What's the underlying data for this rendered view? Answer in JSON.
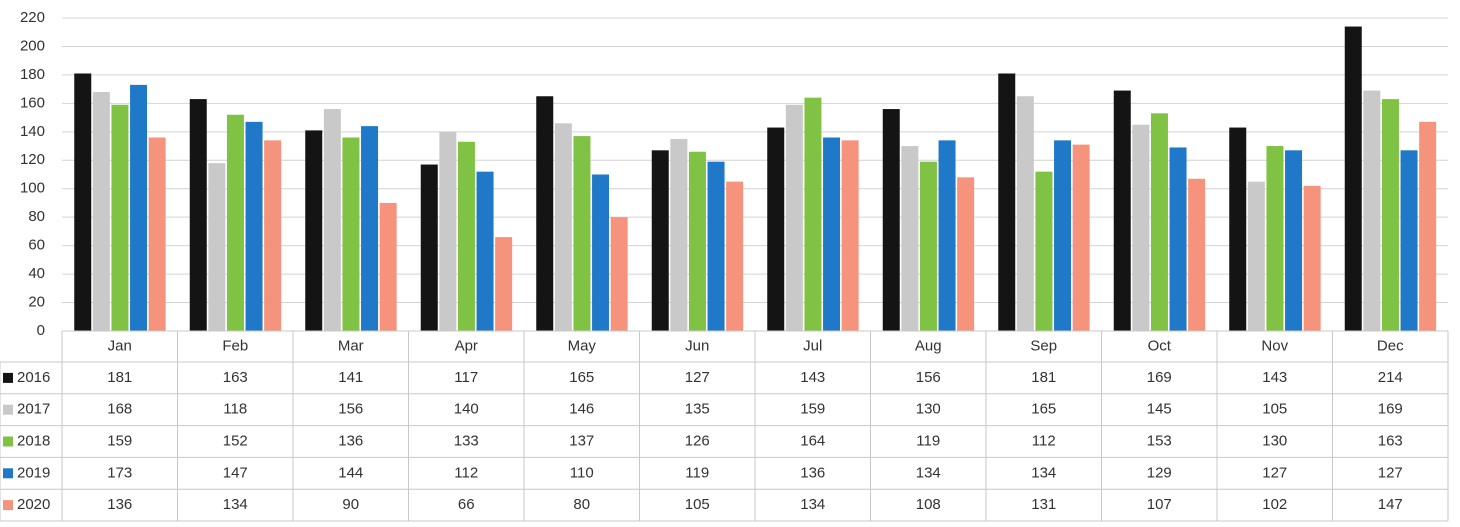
{
  "chart_data": {
    "type": "bar",
    "categories": [
      "Jan",
      "Feb",
      "Mar",
      "Apr",
      "May",
      "Jun",
      "Jul",
      "Aug",
      "Sep",
      "Oct",
      "Nov",
      "Dec"
    ],
    "series": [
      {
        "name": "2016",
        "color": "#141414",
        "values": [
          181,
          163,
          141,
          117,
          165,
          127,
          143,
          156,
          181,
          169,
          143,
          214
        ]
      },
      {
        "name": "2017",
        "color": "#c9c9c9",
        "values": [
          168,
          118,
          156,
          140,
          146,
          135,
          159,
          130,
          165,
          145,
          105,
          169
        ]
      },
      {
        "name": "2018",
        "color": "#7fc244",
        "values": [
          159,
          152,
          136,
          133,
          137,
          126,
          164,
          119,
          112,
          153,
          130,
          163
        ]
      },
      {
        "name": "2019",
        "color": "#1f78c8",
        "values": [
          173,
          147,
          144,
          112,
          110,
          119,
          136,
          134,
          134,
          129,
          127,
          127
        ]
      },
      {
        "name": "2020",
        "color": "#f5937c",
        "values": [
          136,
          134,
          90,
          66,
          80,
          105,
          134,
          108,
          131,
          107,
          102,
          147
        ]
      }
    ],
    "ylim": [
      0,
      220
    ],
    "yticks": [
      0,
      20,
      40,
      60,
      80,
      100,
      120,
      140,
      160,
      180,
      200,
      220
    ],
    "grid": true,
    "data_table": true
  }
}
